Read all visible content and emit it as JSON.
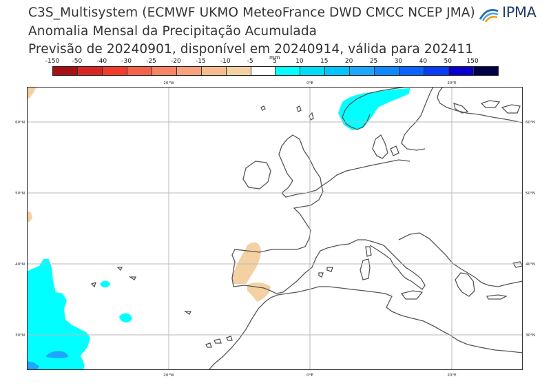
{
  "title": {
    "line1": "C3S_Multisystem  (ECMWF UKMO MeteoFrance DWD CMCC NCEP JMA)",
    "line2": "Anomalia Mensal da Precipitação Acumulada",
    "line3": "Previsão de 20240901, disponível em 20240914, válida para 202411"
  },
  "logo": {
    "text": "IPMA"
  },
  "colorbar": {
    "unit": "mm",
    "ticks": [
      "-150",
      "-50",
      "-40",
      "-30",
      "-25",
      "-20",
      "-15",
      "-10",
      "-5",
      "5",
      "10",
      "15",
      "20",
      "25",
      "30",
      "40",
      "50",
      "150"
    ],
    "colors": [
      "#a50f15",
      "#d62624",
      "#f03c2c",
      "#f5624a",
      "#f88466",
      "#f9a27f",
      "#f7bb8e",
      "#f3d1a2",
      "#ffffff",
      "#00ffff",
      "#00dcf5",
      "#00c3ff",
      "#1ea6ff",
      "#0f87ff",
      "#0a64ff",
      "#0a3cf0",
      "#0a00cd",
      "#000046"
    ]
  },
  "map": {
    "lon_labels": [
      "20°W",
      "0°E",
      "20°E"
    ],
    "lat_labels": [
      "60°N",
      "50°N",
      "40°N",
      "30°N"
    ],
    "colors": {
      "positive": "#00ffff",
      "positive_strong": "#1ea6ff",
      "negative": "#f3d1a2",
      "coast": "#555555",
      "grid": "#b9b9b9"
    }
  }
}
